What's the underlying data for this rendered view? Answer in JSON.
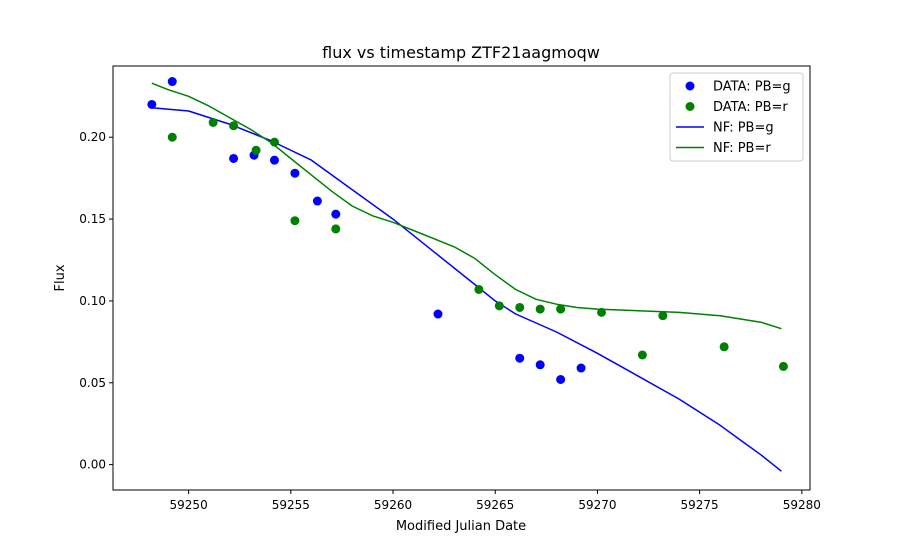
{
  "chart_data": {
    "type": "scatter",
    "title": "flux vs timestamp ZTF21aagmoqw",
    "xlabel": "Modified Julian Date",
    "ylabel": "Flux",
    "xlim": [
      59246.3,
      59280.4
    ],
    "ylim": [
      -0.0155,
      0.2435
    ],
    "xticks": [
      59250,
      59255,
      59260,
      59265,
      59270,
      59275,
      59280
    ],
    "yticks": [
      0.0,
      0.05,
      0.1,
      0.15,
      0.2
    ],
    "ytick_labels": [
      "0.00",
      "0.05",
      "0.10",
      "0.15",
      "0.20"
    ],
    "grid": false,
    "legend_position": "top-right",
    "series": [
      {
        "name": "DATA: PB=g",
        "kind": "scatter",
        "color": "#0000ff",
        "x": [
          59248.2,
          59249.2,
          59252.2,
          59253.2,
          59254.2,
          59255.2,
          59256.3,
          59257.2,
          59262.2,
          59266.2,
          59267.2,
          59268.2,
          59269.2
        ],
        "y": [
          0.22,
          0.234,
          0.187,
          0.189,
          0.186,
          0.178,
          0.161,
          0.153,
          0.092,
          0.065,
          0.061,
          0.052,
          0.059
        ]
      },
      {
        "name": "DATA: PB=r",
        "kind": "scatter",
        "color": "#008000",
        "x": [
          59249.2,
          59251.2,
          59252.2,
          59253.3,
          59254.2,
          59255.2,
          59257.2,
          59264.2,
          59265.2,
          59266.2,
          59267.2,
          59268.2,
          59270.2,
          59272.2,
          59273.2,
          59276.2,
          59279.1
        ],
        "y": [
          0.2,
          0.209,
          0.207,
          0.192,
          0.197,
          0.149,
          0.144,
          0.107,
          0.097,
          0.096,
          0.095,
          0.095,
          0.093,
          0.067,
          0.091,
          0.072,
          0.06
        ]
      },
      {
        "name": "NF: PB=g",
        "kind": "line",
        "color": "#0000ff",
        "x": [
          59248.2,
          59250,
          59252,
          59254,
          59256,
          59258,
          59260,
          59262,
          59264,
          59265,
          59266,
          59268,
          59270,
          59272,
          59274,
          59276,
          59277,
          59278,
          59279
        ],
        "y": [
          0.218,
          0.216,
          0.208,
          0.198,
          0.186,
          0.168,
          0.15,
          0.13,
          0.11,
          0.1,
          0.092,
          0.081,
          0.068,
          0.054,
          0.04,
          0.024,
          0.015,
          0.006,
          -0.004
        ]
      },
      {
        "name": "NF: PB=r",
        "kind": "line",
        "color": "#008000",
        "x": [
          59248.2,
          59249,
          59250,
          59251,
          59252,
          59253,
          59254,
          59255,
          59256,
          59257,
          59258,
          59259,
          59260,
          59261,
          59262,
          59263,
          59264,
          59265,
          59266,
          59267,
          59268,
          59269,
          59270,
          59272,
          59274,
          59276,
          59278,
          59279
        ],
        "y": [
          0.233,
          0.229,
          0.225,
          0.219,
          0.212,
          0.205,
          0.197,
          0.187,
          0.177,
          0.167,
          0.158,
          0.152,
          0.148,
          0.143,
          0.138,
          0.133,
          0.126,
          0.116,
          0.107,
          0.101,
          0.098,
          0.096,
          0.095,
          0.094,
          0.093,
          0.091,
          0.087,
          0.083
        ]
      }
    ]
  }
}
